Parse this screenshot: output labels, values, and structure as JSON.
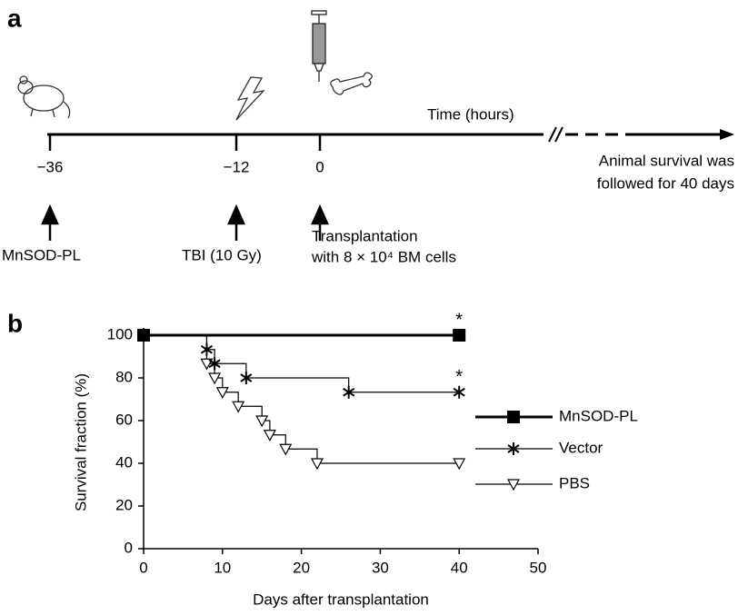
{
  "panel_a": {
    "label": "a",
    "axis_label": "Time (hours)",
    "time_points": [
      "−36",
      "−12",
      "0"
    ],
    "events": [
      "MnSOD-PL",
      "TBI (10 Gy)",
      "Transplantation",
      "with 8 × 10⁴ BM cells"
    ],
    "followup": [
      "Animal survival was",
      "followed for 40 days"
    ]
  },
  "chart_data": {
    "type": "step",
    "panel_label": "b",
    "y_label": "Survival fraction (%)",
    "x_label": "Days after transplantation",
    "xlim": [
      0,
      50
    ],
    "xticks": [
      0,
      10,
      20,
      30,
      40,
      50
    ],
    "ylim": [
      0,
      100
    ],
    "yticks": [
      0,
      20,
      40,
      60,
      80,
      100
    ],
    "grid": false,
    "legend": "right",
    "series": [
      {
        "name": "MnSOD-PL",
        "color": "#000000",
        "marker": "square",
        "x": [
          0,
          40
        ],
        "values": [
          100,
          100
        ]
      },
      {
        "name": "Vector",
        "color": "#000000",
        "marker": "asterisk",
        "x": [
          0,
          8,
          9,
          13,
          26,
          40
        ],
        "values": [
          100,
          93.3,
          86.7,
          80,
          73.3,
          73.3
        ]
      },
      {
        "name": "PBS",
        "color": "#000000",
        "marker": "triangle",
        "x": [
          0,
          8,
          9,
          10,
          12,
          15,
          16,
          18,
          22,
          40
        ],
        "values": [
          100,
          86.7,
          80,
          73.3,
          66.7,
          60,
          53.3,
          46.7,
          40,
          40
        ]
      }
    ],
    "annotations": [
      {
        "text": "*",
        "x": 40,
        "y": 100
      },
      {
        "text": "*",
        "x": 40,
        "y": 73.3
      }
    ]
  }
}
